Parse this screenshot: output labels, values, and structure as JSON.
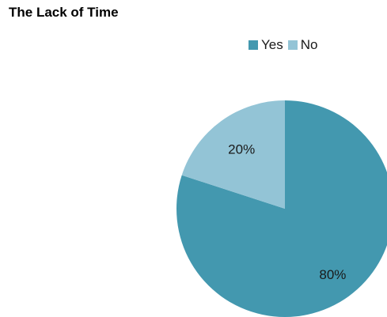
{
  "chart_data": {
    "type": "pie",
    "title": "The Lack of Time",
    "legend_position": "top-right",
    "slices": [
      {
        "name": "Yes",
        "value": 80,
        "label": "80%",
        "color": "#4398AF"
      },
      {
        "name": "No",
        "value": 20,
        "label": "20%",
        "color": "#93C4D6"
      }
    ]
  }
}
